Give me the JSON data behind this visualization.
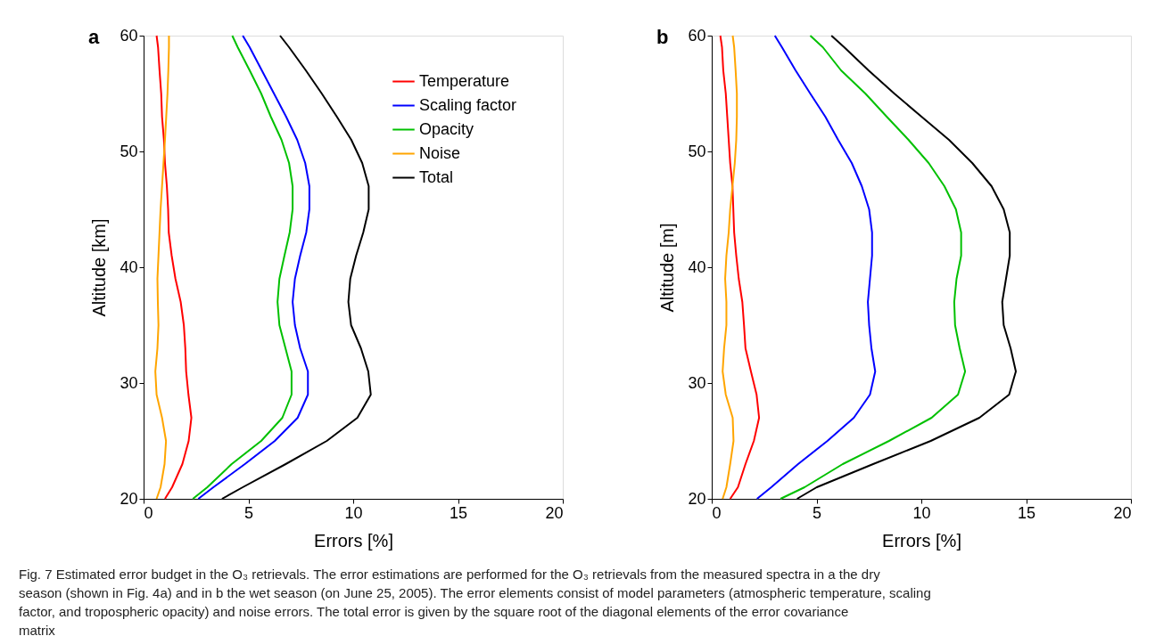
{
  "chart_data": [
    {
      "type": "line",
      "title": "a",
      "xlabel": "Errors [%]",
      "ylabel": "Altitude [km]",
      "xlim": [
        0,
        20
      ],
      "xticks": [
        0,
        5,
        10,
        15,
        20
      ],
      "ylim": [
        20,
        60
      ],
      "yticks": [
        20,
        30,
        40,
        50,
        60
      ],
      "grid": false,
      "legend": "top right",
      "marker": "none",
      "line_style": "solid",
      "annotations": [
        "Fig. 7  Estimated error budget in the O₃ retrievals. The error estimations are performed for the O₃ retrievals from the measured spectra in a the dry season (shown in Fig. 4a) and in b the wet season (on June 25, 2005). The error elements consist of model parameters (atmospheric temperature, scaling factor, and tropospheric opacity) and noise errors. The total error is given by the square root of the diagonal elements of the error covariance matrix"
      ],
      "series": [
        {
          "name": "Temperature",
          "color": "#ff0000",
          "x": [
            1.02,
            1.36,
            1.85,
            2.15,
            2.28,
            2.14,
            2.03,
            1.99,
            1.92,
            1.77,
            1.52,
            1.34,
            1.2,
            1.17,
            1.11,
            1.02,
            0.97,
            0.88,
            0.84,
            0.76,
            0.69,
            0.62
          ],
          "values": [
            20,
            21,
            23,
            25,
            27,
            29,
            31,
            33,
            35,
            37,
            39,
            41,
            43,
            45,
            47,
            49,
            51,
            53,
            55,
            57,
            59,
            60
          ]
        },
        {
          "name": "Scaling factor",
          "color": "#0000ff",
          "x": [
            2.61,
            3.33,
            4.83,
            6.26,
            7.35,
            7.84,
            7.84,
            7.47,
            7.22,
            7.11,
            7.22,
            7.47,
            7.76,
            7.91,
            7.91,
            7.71,
            7.33,
            6.8,
            6.22,
            5.64,
            5.06,
            4.73
          ],
          "values": [
            20,
            21,
            23,
            25,
            27,
            29,
            31,
            33,
            35,
            37,
            39,
            41,
            43,
            45,
            47,
            49,
            51,
            53,
            55,
            57,
            59,
            60
          ]
        },
        {
          "name": "Opacity",
          "color": "#00c000",
          "x": [
            2.35,
            3.04,
            4.2,
            5.61,
            6.62,
            7.06,
            7.06,
            6.77,
            6.48,
            6.39,
            6.48,
            6.72,
            6.97,
            7.11,
            7.11,
            6.94,
            6.58,
            6.07,
            5.61,
            5.06,
            4.49,
            4.23
          ],
          "values": [
            20,
            21,
            23,
            25,
            27,
            29,
            31,
            33,
            35,
            37,
            39,
            41,
            43,
            45,
            47,
            49,
            51,
            53,
            55,
            57,
            59,
            60
          ]
        },
        {
          "name": "Noise",
          "color": "#ffa500",
          "x": [
            0.62,
            0.81,
            1.0,
            1.07,
            0.88,
            0.62,
            0.56,
            0.66,
            0.71,
            0.68,
            0.66,
            0.71,
            0.76,
            0.81,
            0.88,
            0.95,
            1.02,
            1.08,
            1.14,
            1.18,
            1.21,
            1.21
          ],
          "values": [
            20,
            21,
            23,
            25,
            27,
            29,
            31,
            33,
            35,
            37,
            39,
            41,
            43,
            45,
            47,
            49,
            51,
            53,
            55,
            57,
            59,
            60
          ]
        },
        {
          "name": "Total",
          "color": "#000000",
          "x": [
            3.74,
            4.73,
            6.78,
            8.74,
            10.2,
            10.84,
            10.72,
            10.37,
            9.9,
            9.77,
            9.86,
            10.14,
            10.48,
            10.74,
            10.74,
            10.43,
            9.91,
            9.22,
            8.5,
            7.74,
            6.94,
            6.51
          ],
          "values": [
            20,
            21,
            23,
            25,
            27,
            29,
            31,
            33,
            35,
            37,
            39,
            41,
            43,
            45,
            47,
            49,
            51,
            53,
            55,
            57,
            59,
            60
          ]
        }
      ]
    },
    {
      "type": "line",
      "title": "b",
      "xlabel": "Errors [%]",
      "ylabel": "Altitude [m]",
      "xlim": [
        0,
        20
      ],
      "xticks": [
        0,
        5,
        10,
        15,
        20
      ],
      "ylim": [
        20,
        60
      ],
      "yticks": [
        20,
        30,
        40,
        50,
        60
      ],
      "grid": false,
      "marker": "none",
      "line_style": "solid",
      "series": [
        {
          "color": "#ff0000",
          "x": [
            0.88,
            1.25,
            1.61,
            2.01,
            2.26,
            2.14,
            1.87,
            1.61,
            1.54,
            1.46,
            1.29,
            1.17,
            1.07,
            1.03,
            0.99,
            0.88,
            0.81,
            0.74,
            0.67,
            0.55,
            0.49,
            0.41
          ],
          "values": [
            20,
            21,
            23,
            25,
            27,
            29,
            31,
            33,
            35,
            37,
            39,
            41,
            43,
            45,
            47,
            49,
            51,
            53,
            55,
            57,
            59,
            60
          ]
        },
        {
          "color": "#0000ff",
          "x": [
            2.16,
            2.84,
            4.12,
            5.52,
            6.78,
            7.55,
            7.8,
            7.62,
            7.51,
            7.45,
            7.55,
            7.65,
            7.65,
            7.51,
            7.16,
            6.68,
            6.03,
            5.42,
            4.7,
            4.0,
            3.35,
            3.01
          ],
          "values": [
            20,
            21,
            23,
            25,
            27,
            29,
            31,
            33,
            35,
            37,
            39,
            41,
            43,
            45,
            47,
            49,
            51,
            53,
            55,
            57,
            59,
            60
          ]
        },
        {
          "color": "#00c000",
          "x": [
            3.28,
            4.43,
            6.25,
            8.46,
            10.49,
            11.75,
            12.09,
            11.83,
            11.61,
            11.57,
            11.68,
            11.9,
            11.9,
            11.65,
            11.1,
            10.35,
            9.39,
            8.35,
            7.33,
            6.17,
            5.3,
            4.7
          ],
          "values": [
            20,
            21,
            23,
            25,
            27,
            29,
            31,
            33,
            35,
            37,
            39,
            41,
            43,
            45,
            47,
            49,
            51,
            53,
            55,
            57,
            59,
            60
          ]
        },
        {
          "color": "#ffa500",
          "x": [
            0.52,
            0.7,
            0.88,
            1.04,
            1.0,
            0.67,
            0.52,
            0.59,
            0.7,
            0.7,
            0.64,
            0.7,
            0.81,
            0.88,
            0.99,
            1.1,
            1.17,
            1.2,
            1.2,
            1.14,
            1.07,
            1.0
          ],
          "values": [
            20,
            21,
            23,
            25,
            27,
            29,
            31,
            33,
            35,
            37,
            39,
            41,
            43,
            45,
            47,
            49,
            51,
            53,
            55,
            57,
            59,
            60
          ]
        },
        {
          "color": "#000000",
          "x": [
            4.07,
            5.01,
            7.7,
            10.45,
            12.77,
            14.19,
            14.51,
            14.26,
            13.93,
            13.86,
            14.04,
            14.22,
            14.22,
            13.93,
            13.35,
            12.43,
            11.32,
            10.01,
            8.71,
            7.48,
            6.32,
            5.71
          ],
          "values": [
            20,
            21,
            23,
            25,
            27,
            29,
            31,
            33,
            35,
            37,
            39,
            41,
            43,
            45,
            47,
            49,
            51,
            53,
            55,
            57,
            59,
            60
          ]
        }
      ]
    }
  ]
}
